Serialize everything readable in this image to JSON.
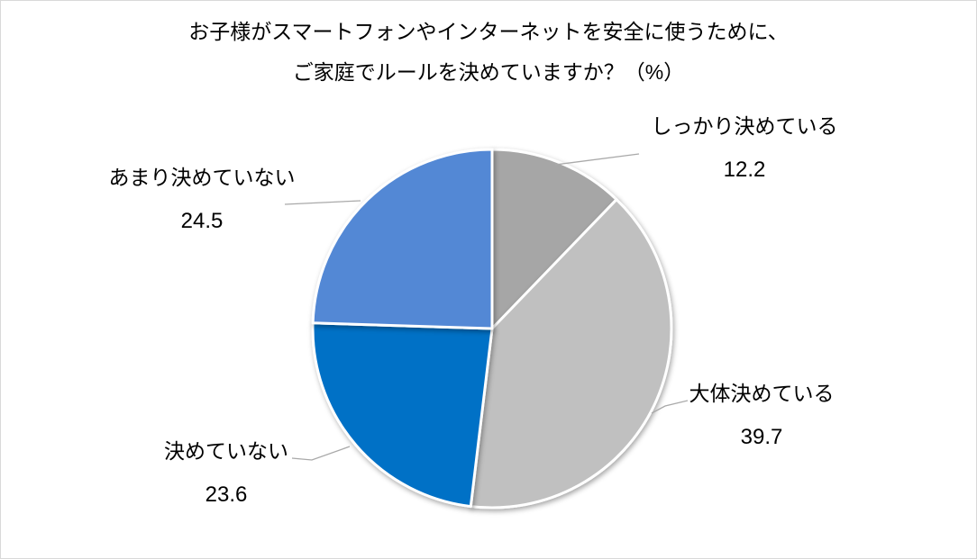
{
  "frame": {
    "background": "#FFFFFF",
    "border_color": "#D9D9D9"
  },
  "title": {
    "line1": "お子様がスマートフォンやインターネットを安全に使うために、",
    "line2": "ご家庭でルールを決めていますか？（%）"
  },
  "chart_data": {
    "type": "pie",
    "title": "お子様がスマートフォンやインターネットを安全に使うために、ご家庭でルールを決めていますか？（%）",
    "unit": "%",
    "direction": "clockwise",
    "start_angle_deg": 0,
    "legend_position": "none",
    "data_labels": "category name and value, outside slices with leader lines",
    "slices": [
      {
        "label": "しっかり決めている",
        "value": 12.2,
        "value_text": "12.2",
        "color": "#A6A6A6"
      },
      {
        "label": "大体決めている",
        "value": 39.7,
        "value_text": "39.7",
        "color": "#C0C0C0"
      },
      {
        "label": "決めていない",
        "value": 23.6,
        "value_text": "23.6",
        "color": "#0471C6"
      },
      {
        "label": "あまり決めていない",
        "value": 24.5,
        "value_text": "24.5",
        "color": "#5388D5"
      }
    ],
    "colors": {
      "slice_border": "#FFFFFF",
      "leader_line": "#A9A9A9",
      "label_text": "#000000",
      "title_text": "#000000"
    }
  }
}
